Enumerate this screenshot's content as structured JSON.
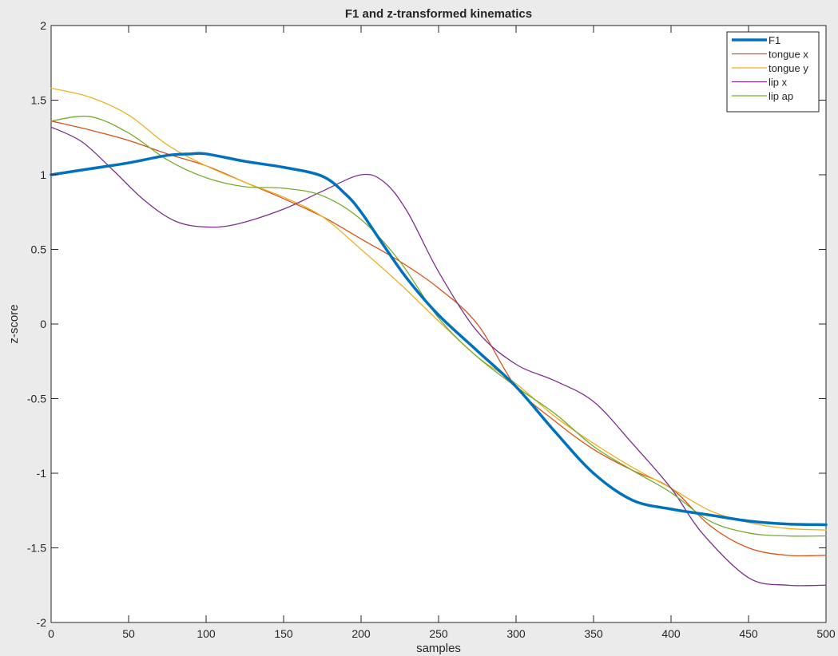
{
  "chart_data": {
    "type": "line",
    "title": "F1 and z-transformed kinematics",
    "xlabel": "samples",
    "ylabel": "z-score",
    "xlim": [
      0,
      500
    ],
    "ylim": [
      -2,
      2
    ],
    "xticks": [
      0,
      50,
      100,
      150,
      200,
      250,
      300,
      350,
      400,
      450,
      500
    ],
    "xtick_labels": [
      "0",
      "50",
      "100",
      "150",
      "200",
      "250",
      "300",
      "350",
      "400",
      "450",
      "500"
    ],
    "yticks": [
      -2,
      -1.5,
      -1,
      -0.5,
      0,
      0.5,
      1,
      1.5,
      2
    ],
    "ytick_labels": [
      "-2",
      "-1.5",
      "-1",
      "-0.5",
      "0",
      "0.5",
      "1",
      "1.5",
      "2"
    ],
    "grid": false,
    "legend_position": "top-right",
    "series": [
      {
        "name": "F1",
        "color": "#0072bd",
        "emphasis": "thick",
        "x": [
          0,
          25,
          50,
          75,
          90,
          100,
          125,
          150,
          175,
          190,
          200,
          215,
          230,
          250,
          275,
          300,
          325,
          350,
          375,
          400,
          425,
          450,
          475,
          500
        ],
        "y": [
          1.0,
          1.04,
          1.08,
          1.13,
          1.14,
          1.14,
          1.09,
          1.05,
          0.99,
          0.87,
          0.75,
          0.52,
          0.3,
          0.06,
          -0.18,
          -0.42,
          -0.72,
          -1.0,
          -1.18,
          -1.24,
          -1.28,
          -1.32,
          -1.34,
          -1.345
        ]
      },
      {
        "name": "tongue x",
        "color": "#d95319",
        "x": [
          0,
          25,
          50,
          75,
          100,
          125,
          150,
          175,
          200,
          225,
          250,
          275,
          300,
          325,
          350,
          375,
          400,
          425,
          450,
          475,
          500
        ],
        "y": [
          1.36,
          1.3,
          1.23,
          1.14,
          1.06,
          0.95,
          0.84,
          0.72,
          0.57,
          0.42,
          0.24,
          0.0,
          -0.42,
          -0.65,
          -0.84,
          -0.98,
          -1.1,
          -1.35,
          -1.5,
          -1.55,
          -1.55
        ]
      },
      {
        "name": "tongue y",
        "color": "#edb120",
        "x": [
          0,
          25,
          50,
          75,
          100,
          125,
          150,
          175,
          200,
          225,
          250,
          275,
          300,
          325,
          350,
          375,
          400,
          425,
          450,
          475,
          500
        ],
        "y": [
          1.58,
          1.52,
          1.4,
          1.2,
          1.06,
          0.95,
          0.85,
          0.72,
          0.5,
          0.27,
          0.02,
          -0.22,
          -0.4,
          -0.62,
          -0.8,
          -0.96,
          -1.1,
          -1.25,
          -1.33,
          -1.37,
          -1.38
        ]
      },
      {
        "name": "lip x",
        "color": "#7e2f8e",
        "x": [
          0,
          20,
          40,
          60,
          80,
          100,
          120,
          150,
          175,
          200,
          215,
          230,
          250,
          275,
          300,
          325,
          350,
          375,
          400,
          420,
          450,
          475,
          500
        ],
        "y": [
          1.32,
          1.22,
          1.03,
          0.83,
          0.69,
          0.65,
          0.67,
          0.77,
          0.89,
          1.0,
          0.95,
          0.75,
          0.35,
          -0.05,
          -0.27,
          -0.38,
          -0.52,
          -0.8,
          -1.1,
          -1.4,
          -1.7,
          -1.75,
          -1.75
        ]
      },
      {
        "name": "lip ap",
        "color": "#77ac30",
        "x": [
          0,
          25,
          50,
          75,
          100,
          125,
          150,
          175,
          200,
          225,
          250,
          275,
          300,
          325,
          350,
          375,
          400,
          425,
          450,
          475,
          500
        ],
        "y": [
          1.36,
          1.39,
          1.28,
          1.1,
          0.98,
          0.92,
          0.91,
          0.86,
          0.7,
          0.42,
          0.04,
          -0.22,
          -0.42,
          -0.6,
          -0.82,
          -0.98,
          -1.13,
          -1.32,
          -1.4,
          -1.42,
          -1.42
        ]
      }
    ]
  }
}
